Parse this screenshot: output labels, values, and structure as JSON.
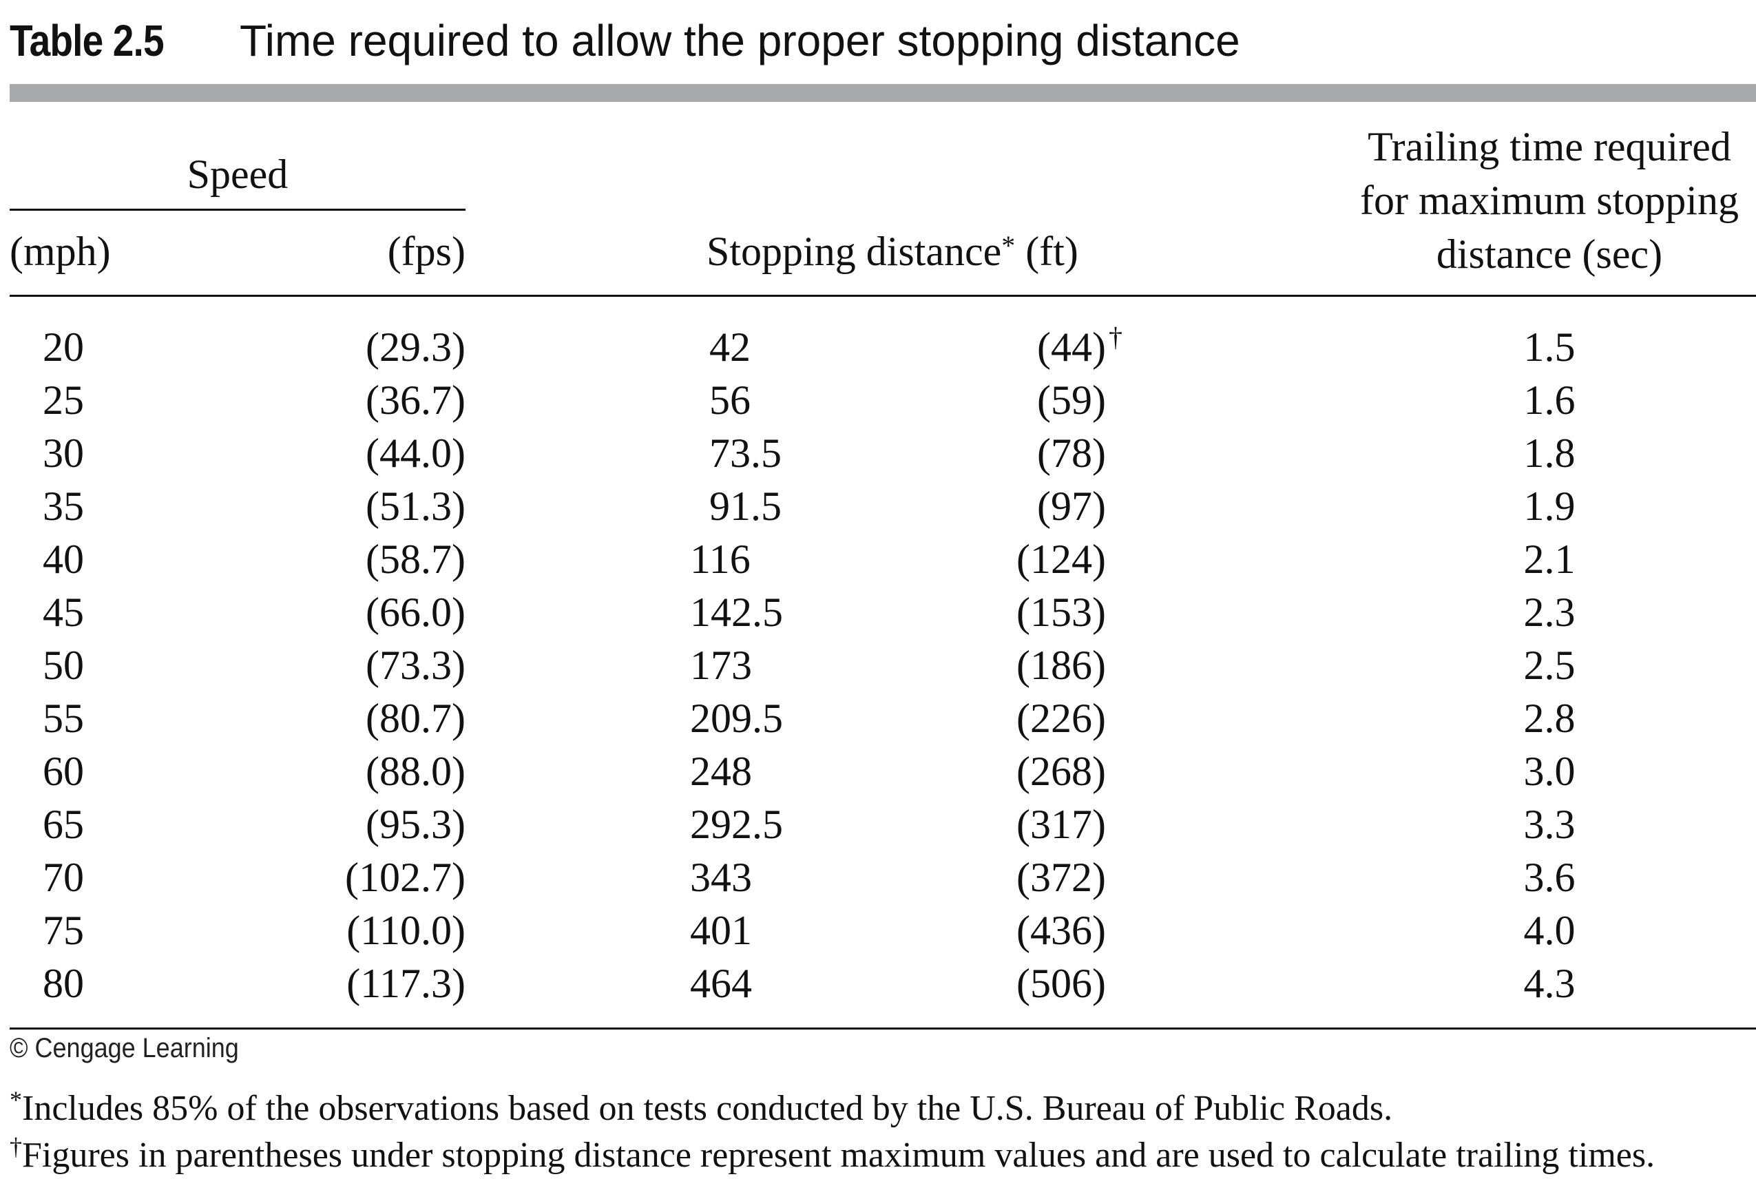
{
  "title": {
    "label": "Table 2.5",
    "caption": "Time required to allow the proper stopping distance"
  },
  "headers": {
    "speed_group": "Speed",
    "mph": "(mph)",
    "fps": "(fps)",
    "stopping_distance": "Stopping distance",
    "stopping_distance_mark": "*",
    "stopping_distance_unit": "(ft)",
    "trailing_time_lines": [
      "Trailing time required",
      "for maximum stopping",
      "distance (sec)"
    ]
  },
  "rows": [
    {
      "mph": "20",
      "fps": "(29.3)",
      "stop": "42",
      "stop_max": "(44)",
      "stop_max_mark": "†",
      "trailing": "1.5"
    },
    {
      "mph": "25",
      "fps": "(36.7)",
      "stop": "56",
      "stop_max": "(59)",
      "stop_max_mark": "",
      "trailing": "1.6"
    },
    {
      "mph": "30",
      "fps": "(44.0)",
      "stop": "73.5",
      "stop_max": "(78)",
      "stop_max_mark": "",
      "trailing": "1.8"
    },
    {
      "mph": "35",
      "fps": "(51.3)",
      "stop": "91.5",
      "stop_max": "(97)",
      "stop_max_mark": "",
      "trailing": "1.9"
    },
    {
      "mph": "40",
      "fps": "(58.7)",
      "stop": "116",
      "stop_max": "(124)",
      "stop_max_mark": "",
      "trailing": "2.1"
    },
    {
      "mph": "45",
      "fps": "(66.0)",
      "stop": "142.5",
      "stop_max": "(153)",
      "stop_max_mark": "",
      "trailing": "2.3"
    },
    {
      "mph": "50",
      "fps": "(73.3)",
      "stop": "173",
      "stop_max": "(186)",
      "stop_max_mark": "",
      "trailing": "2.5"
    },
    {
      "mph": "55",
      "fps": "(80.7)",
      "stop": "209.5",
      "stop_max": "(226)",
      "stop_max_mark": "",
      "trailing": "2.8"
    },
    {
      "mph": "60",
      "fps": "(88.0)",
      "stop": "248",
      "stop_max": "(268)",
      "stop_max_mark": "",
      "trailing": "3.0"
    },
    {
      "mph": "65",
      "fps": "(95.3)",
      "stop": "292.5",
      "stop_max": "(317)",
      "stop_max_mark": "",
      "trailing": "3.3"
    },
    {
      "mph": "70",
      "fps": "(102.7)",
      "stop": "343",
      "stop_max": "(372)",
      "stop_max_mark": "",
      "trailing": "3.6"
    },
    {
      "mph": "75",
      "fps": "(110.0)",
      "stop": "401",
      "stop_max": "(436)",
      "stop_max_mark": "",
      "trailing": "4.0"
    },
    {
      "mph": "80",
      "fps": "(117.3)",
      "stop": "464",
      "stop_max": "(506)",
      "stop_max_mark": "",
      "trailing": "4.3"
    }
  ],
  "credit": "© Cengage Learning",
  "footnotes": [
    {
      "mark": "*",
      "text": "Includes 85% of the observations based on tests conducted by the U.S. Bureau of Public Roads."
    },
    {
      "mark": "†",
      "text": "Figures in parentheses under stopping distance represent maximum values and are used to calculate trailing times."
    }
  ],
  "colors": {
    "title_bar": "#a7a9ac",
    "text": "#111111",
    "background": "#ffffff"
  }
}
